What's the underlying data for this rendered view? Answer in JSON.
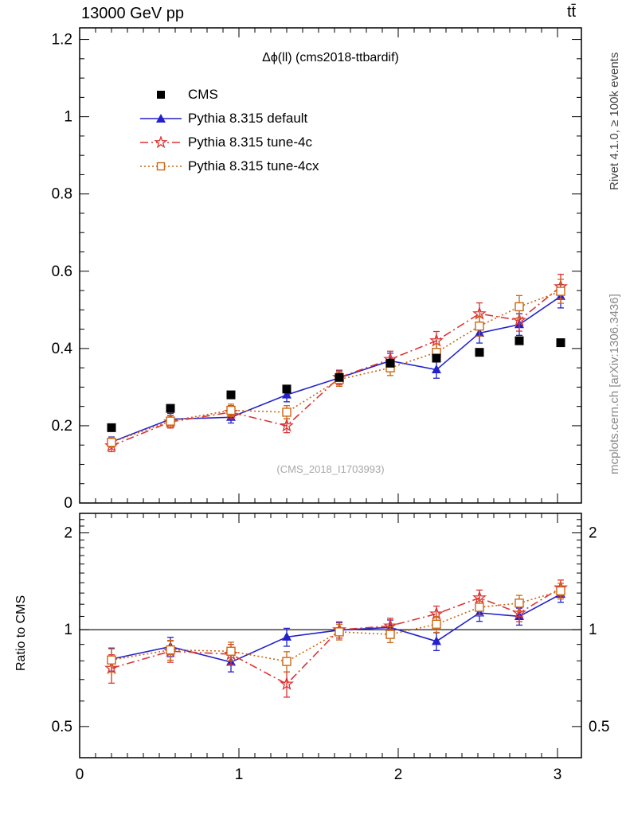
{
  "header": {
    "left": "13000 GeV pp",
    "right": "tt̄"
  },
  "panel": {
    "title": "Δϕ(ll) (cms2018-ttbardif)",
    "watermark": "(CMS_2018_I1703993)"
  },
  "side": {
    "top": "Rivet 4.1.0, ≥ 100k events",
    "bottom": "mcplots.cern.ch [arXiv:1306.3436]"
  },
  "ratio_label": "Ratio to CMS",
  "legend": {
    "items": [
      {
        "label": "CMS"
      },
      {
        "label": "Pythia 8.315 default"
      },
      {
        "label": "Pythia 8.315 tune-4c"
      },
      {
        "label": "Pythia 8.315 tune-4cx"
      }
    ]
  },
  "chart_data": {
    "type": "scatter",
    "title": "Δϕ(ll) (cms2018-ttbardif)",
    "xlabel": "",
    "ylabel": "",
    "xlim": [
      0,
      3.15
    ],
    "main_ylim": [
      0,
      1.23
    ],
    "ratio_ylim": [
      0.4,
      2.3
    ],
    "ratio_scale": "log",
    "grid": false,
    "legend_position": "upper-left",
    "xticks": {
      "major": [
        0,
        1,
        2,
        3
      ],
      "labels": [
        "0",
        "1",
        "2",
        "3"
      ],
      "minor_step": 0.1
    },
    "main_yticks": {
      "major": [
        0,
        0.2,
        0.4,
        0.6,
        0.8,
        1.0,
        1.2
      ],
      "labels": [
        "0",
        "0.2",
        "0.4",
        "0.6",
        "0.8",
        "1",
        "1.2"
      ],
      "minor_step": 0.05
    },
    "ratio_yticks": {
      "major": [
        0.5,
        1,
        2
      ],
      "labels": [
        "0.5",
        "1",
        "2"
      ]
    },
    "x": [
      0.2,
      0.57,
      0.95,
      1.3,
      1.63,
      1.95,
      2.24,
      2.51,
      2.76,
      3.02
    ],
    "series": [
      {
        "id": "cms",
        "name": "CMS",
        "color": "#000000",
        "marker": "square-filled",
        "line": "none",
        "values": [
          0.195,
          0.245,
          0.28,
          0.295,
          0.325,
          0.362,
          0.375,
          0.39,
          0.42,
          0.415
        ],
        "errors": [
          0.006,
          0.006,
          0.007,
          0.007,
          0.007,
          0.008,
          0.008,
          0.008,
          0.009,
          0.009
        ]
      },
      {
        "id": "default",
        "name": "Pythia 8.315 default",
        "color": "#2222cc",
        "marker": "triangle-filled",
        "line": "solid",
        "values": [
          0.158,
          0.217,
          0.222,
          0.28,
          0.324,
          0.368,
          0.345,
          0.44,
          0.462,
          0.535
        ],
        "errors": [
          0.013,
          0.015,
          0.015,
          0.018,
          0.018,
          0.02,
          0.022,
          0.026,
          0.028,
          0.03
        ]
      },
      {
        "id": "tune4c",
        "name": "Pythia 8.315 tune-4c",
        "color": "#dd3333",
        "marker": "star-open",
        "line": "dashdot",
        "values": [
          0.148,
          0.21,
          0.235,
          0.2,
          0.325,
          0.372,
          0.42,
          0.49,
          0.473,
          0.56
        ],
        "errors": [
          0.015,
          0.016,
          0.017,
          0.018,
          0.019,
          0.021,
          0.024,
          0.028,
          0.028,
          0.032
        ]
      },
      {
        "id": "tune4cx",
        "name": "Pythia 8.315 tune-4cx",
        "color": "#cc6611",
        "marker": "square-open",
        "line": "dotted",
        "values": [
          0.157,
          0.212,
          0.24,
          0.235,
          0.32,
          0.35,
          0.39,
          0.458,
          0.508,
          0.548
        ],
        "errors": [
          0.013,
          0.015,
          0.016,
          0.017,
          0.018,
          0.02,
          0.022,
          0.026,
          0.029,
          0.031
        ]
      }
    ],
    "ratio_reference": "CMS"
  }
}
